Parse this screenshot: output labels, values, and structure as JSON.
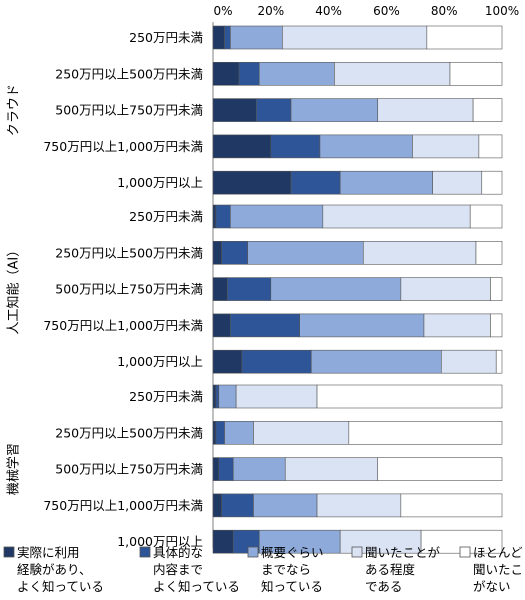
{
  "chart_data": {
    "type": "bar",
    "orientation": "horizontal",
    "stacked": true,
    "xlim": [
      0,
      100
    ],
    "x_ticks": [
      "0%",
      "20%",
      "40%",
      "60%",
      "80%",
      "100%"
    ],
    "grid": false,
    "legend_position": "bottom",
    "series": [
      {
        "name": "実際に利用経験があり、よく知っている",
        "legend_lines": [
          "実際に利用",
          "経験があり、",
          "よく知っている"
        ],
        "color": "#1f3864"
      },
      {
        "name": "具体的な内容までよく知っている",
        "legend_lines": [
          "具体的な",
          "内容まで",
          "よく知っている"
        ],
        "color": "#2e5597"
      },
      {
        "name": "概要ぐらいまでなら知っている",
        "legend_lines": [
          "概要ぐらい",
          "までなら",
          "知っている"
        ],
        "color": "#8eaadb"
      },
      {
        "name": "聞いたことがある程度である",
        "legend_lines": [
          "聞いたことが",
          "ある程度",
          "である"
        ],
        "color": "#dae3f3"
      },
      {
        "name": "ほとんど聞いたことがない",
        "legend_lines": [
          "ほとんど",
          "聞いたこと",
          "がない"
        ],
        "color": "#ffffff"
      }
    ],
    "groups": [
      {
        "label": "クラウド",
        "rows": [
          {
            "category": "250万円未満",
            "values": [
              4,
              2,
              18,
              50,
              26
            ]
          },
          {
            "category": "250万円以上500万円未満",
            "values": [
              9,
              7,
              26,
              40,
              18
            ]
          },
          {
            "category": "500万円以上750万円未満",
            "values": [
              15,
              12,
              30,
              33,
              10
            ]
          },
          {
            "category": "750万円以上1,000万円未満",
            "values": [
              20,
              17,
              32,
              23,
              8
            ]
          },
          {
            "category": "1,000万円以上",
            "values": [
              27,
              17,
              32,
              17,
              7
            ]
          }
        ]
      },
      {
        "label": "人工知能（AI）",
        "rows": [
          {
            "category": "250万円未満",
            "values": [
              1,
              5,
              32,
              51,
              11
            ]
          },
          {
            "category": "250万円以上500万円未満",
            "values": [
              3,
              9,
              40,
              39,
              9
            ]
          },
          {
            "category": "500万円以上750万円未満",
            "values": [
              5,
              15,
              45,
              31,
              4
            ]
          },
          {
            "category": "750万円以上1,000万円未満",
            "values": [
              6,
              24,
              43,
              23,
              4
            ]
          },
          {
            "category": "1,000万円以上",
            "values": [
              10,
              24,
              45,
              19,
              2
            ]
          }
        ]
      },
      {
        "label": "機械学習",
        "rows": [
          {
            "category": "250万円未満",
            "values": [
              1,
              1,
              6,
              28,
              64
            ]
          },
          {
            "category": "250万円以上500万円未満",
            "values": [
              1,
              3,
              10,
              33,
              53
            ]
          },
          {
            "category": "500万円以上750万円未満",
            "values": [
              2,
              5,
              18,
              32,
              43
            ]
          },
          {
            "category": "750万円以上1,000万円未満",
            "values": [
              3,
              11,
              22,
              29,
              35
            ]
          },
          {
            "category": "1,000万円以上",
            "values": [
              7,
              9,
              28,
              28,
              28
            ]
          }
        ]
      }
    ]
  }
}
